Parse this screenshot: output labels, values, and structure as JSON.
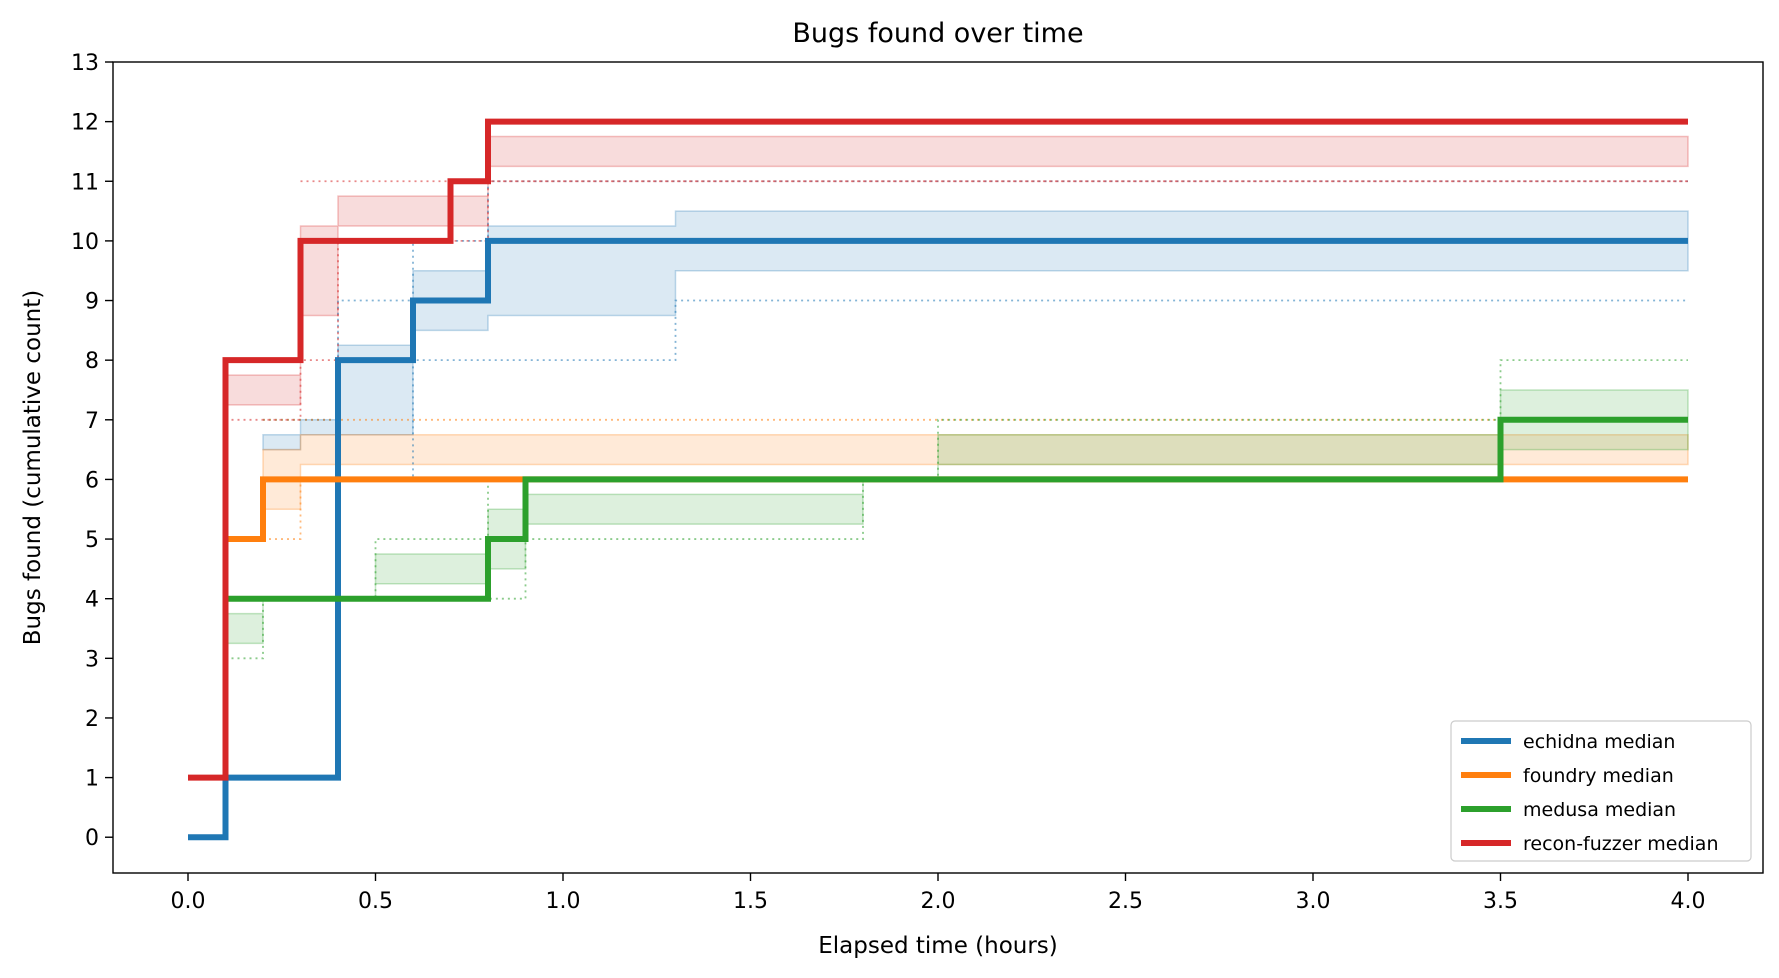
{
  "chart_data": {
    "type": "line",
    "step": "post",
    "title": "Bugs found over time",
    "xlabel": "Elapsed time (hours)",
    "ylabel": "Bugs found (cumulative count)",
    "xlim": [
      -0.2,
      4.2
    ],
    "ylim": [
      -0.6,
      13
    ],
    "xticks": [
      0.0,
      0.5,
      1.0,
      1.5,
      2.0,
      2.5,
      3.0,
      3.5,
      4.0
    ],
    "xtick_labels": [
      "0.0",
      "0.5",
      "1.0",
      "1.5",
      "2.0",
      "2.5",
      "3.0",
      "3.5",
      "4.0"
    ],
    "yticks": [
      0,
      1,
      2,
      3,
      4,
      5,
      6,
      7,
      8,
      9,
      10,
      11,
      12,
      13
    ],
    "ytick_labels": [
      "0",
      "1",
      "2",
      "3",
      "4",
      "5",
      "6",
      "7",
      "8",
      "9",
      "10",
      "11",
      "12",
      "13"
    ],
    "grid": false,
    "legend_position": "lower-right",
    "series": [
      {
        "name": "echidna median",
        "color": "#1f77b4",
        "x": [
          0,
          0.1,
          0.4,
          0.6,
          0.8,
          4.0
        ],
        "y": [
          0,
          1,
          8,
          9,
          10,
          10
        ],
        "iqr_x": [
          0.2,
          0.3,
          0.4,
          0.6,
          0.8,
          1.3,
          4.0
        ],
        "iqr_low": [
          6.5,
          6.75,
          6.75,
          8.5,
          8.75,
          9.5,
          9.5
        ],
        "iqr_high": [
          6.75,
          7.0,
          8.25,
          9.5,
          10.25,
          10.5,
          10.5
        ],
        "min_x": [
          0.4,
          0.6,
          0.8,
          1.3,
          4.0
        ],
        "min_y": [
          6,
          8,
          8,
          9,
          9
        ],
        "max_x": [
          0.2,
          0.3,
          0.4,
          0.6,
          0.8,
          4.0
        ],
        "max_y": [
          7,
          7,
          9,
          10,
          11,
          11
        ]
      },
      {
        "name": "foundry median",
        "color": "#ff7f0e",
        "x": [
          0.1,
          0.2,
          0.3,
          4.0
        ],
        "y": [
          5,
          6,
          6,
          6
        ],
        "iqr_x": [
          0.2,
          0.3,
          2.0,
          3.5,
          4.0
        ],
        "iqr_low": [
          5.5,
          6.25,
          6.25,
          6.25,
          6.25
        ],
        "iqr_high": [
          6.5,
          6.75,
          6.75,
          6.75,
          6.75
        ],
        "min_x": [
          0.2,
          0.3,
          4.0
        ],
        "min_y": [
          5,
          6,
          6
        ],
        "max_x": [
          0.2,
          0.3,
          4.0
        ],
        "max_y": [
          7,
          7,
          7
        ]
      },
      {
        "name": "medusa median",
        "color": "#2ca02c",
        "x": [
          0.1,
          0.5,
          0.8,
          0.9,
          3.5,
          4.0
        ],
        "y": [
          4,
          4,
          5,
          6,
          7,
          7
        ],
        "iqr_x": [
          0.1,
          0.2,
          0.5,
          0.8,
          0.9,
          1.8,
          2.0,
          3.5,
          4.0
        ],
        "iqr_low": [
          3.25,
          4.0,
          4.25,
          4.5,
          5.25,
          6.0,
          6.25,
          6.5,
          6.5
        ],
        "iqr_high": [
          3.75,
          4.0,
          4.75,
          5.5,
          5.75,
          6.0,
          6.75,
          7.5,
          7.5
        ],
        "min_x": [
          0.1,
          0.2,
          0.5,
          0.8,
          0.9,
          1.8,
          4.0
        ],
        "min_y": [
          3,
          4,
          4,
          4,
          5,
          6,
          6
        ],
        "max_x": [
          0.2,
          0.5,
          0.8,
          2.0,
          3.5,
          4.0
        ],
        "max_y": [
          4,
          5,
          6,
          7,
          8,
          8
        ]
      },
      {
        "name": "recon-fuzzer median",
        "color": "#d62728",
        "x": [
          0,
          0.1,
          0.3,
          0.7,
          0.8,
          4.0
        ],
        "y": [
          1,
          8,
          10,
          11,
          12,
          12
        ],
        "iqr_x": [
          0.1,
          0.3,
          0.4,
          0.7,
          0.8,
          4.0
        ],
        "iqr_low": [
          7.25,
          8.75,
          10.25,
          10.25,
          11.25,
          11.25
        ],
        "iqr_high": [
          7.75,
          10.25,
          10.75,
          10.75,
          11.75,
          11.75
        ],
        "min_x": [
          0.1,
          0.3,
          0.4,
          0.8,
          4.0
        ],
        "min_y": [
          7,
          8,
          10,
          11,
          11
        ],
        "max_x": [
          0.3,
          0.4,
          0.8,
          4.0
        ],
        "max_y": [
          11,
          11,
          11,
          11
        ]
      }
    ]
  }
}
